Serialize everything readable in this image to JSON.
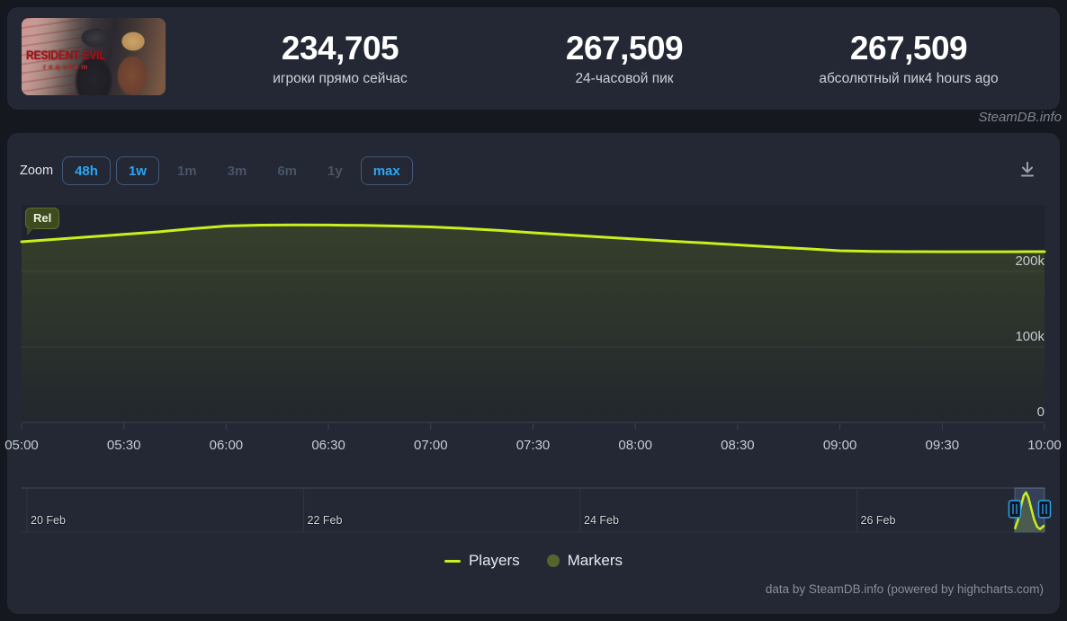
{
  "header": {
    "game_title": "RESIDENT EVIL",
    "game_subtitle": "requiem",
    "stats": [
      {
        "value": "234,705",
        "label": "игроки прямо сейчас",
        "suffix": ""
      },
      {
        "value": "267,509",
        "label": "24-часовой пик",
        "suffix": ""
      },
      {
        "value": "267,509",
        "label": "абсолютный пик",
        "suffix": "4 hours ago"
      }
    ]
  },
  "watermark": "SteamDB.info",
  "toolbar": {
    "zoom_label": "Zoom",
    "buttons": [
      {
        "label": "48h",
        "active": true
      },
      {
        "label": "1w",
        "active": true
      },
      {
        "label": "1m",
        "active": false
      },
      {
        "label": "3m",
        "active": false
      },
      {
        "label": "6m",
        "active": false
      },
      {
        "label": "1y",
        "active": false
      },
      {
        "label": "max",
        "active": true
      }
    ]
  },
  "chart_data": {
    "type": "line",
    "title": "",
    "xlabel": "",
    "ylabel": "",
    "ylim": [
      0,
      288000
    ],
    "grid": true,
    "legend_position": "bottom",
    "release_flag": "Rel",
    "x_ticks": [
      "05:00",
      "05:30",
      "06:00",
      "06:30",
      "07:00",
      "07:30",
      "08:00",
      "08:30",
      "09:00",
      "09:30",
      "10:00"
    ],
    "y_ticks": [
      {
        "value": 0,
        "label": "0"
      },
      {
        "value": 100000,
        "label": "100k"
      },
      {
        "value": 200000,
        "label": "200k"
      }
    ],
    "series": [
      {
        "name": "Players",
        "color": "#c8f01e",
        "points": [
          [
            300,
            239200
          ],
          [
            310,
            242500
          ],
          [
            320,
            245800
          ],
          [
            330,
            249000
          ],
          [
            340,
            252300
          ],
          [
            350,
            256500
          ],
          [
            360,
            260000
          ],
          [
            370,
            261200
          ],
          [
            380,
            261600
          ],
          [
            390,
            261300
          ],
          [
            400,
            260900
          ],
          [
            410,
            260000
          ],
          [
            420,
            258800
          ],
          [
            430,
            256800
          ],
          [
            440,
            254200
          ],
          [
            450,
            251100
          ],
          [
            460,
            248300
          ],
          [
            470,
            245500
          ],
          [
            480,
            242800
          ],
          [
            490,
            240200
          ],
          [
            500,
            237600
          ],
          [
            510,
            235000
          ],
          [
            520,
            232400
          ],
          [
            530,
            229900
          ],
          [
            540,
            227300
          ],
          [
            550,
            226400
          ],
          [
            560,
            226100
          ],
          [
            570,
            226000
          ],
          [
            580,
            226000
          ],
          [
            590,
            226000
          ],
          [
            600,
            226100
          ]
        ]
      }
    ],
    "markers_color": "#55662c",
    "navigator": {
      "day_labels": [
        "20 Feb",
        "22 Feb",
        "24 Feb",
        "26 Feb"
      ],
      "selection_curve": [
        [
          0,
          0.03
        ],
        [
          0.1,
          0.26
        ],
        [
          0.2,
          0.62
        ],
        [
          0.3,
          0.92
        ],
        [
          0.38,
          1.0
        ],
        [
          0.46,
          0.86
        ],
        [
          0.55,
          0.58
        ],
        [
          0.65,
          0.28
        ],
        [
          0.75,
          0.09
        ],
        [
          0.85,
          0.03
        ],
        [
          1,
          0.13
        ]
      ]
    }
  },
  "legend": [
    {
      "label": "Players",
      "swatch": "line",
      "color": "#c8f01e"
    },
    {
      "label": "Markers",
      "swatch": "circle",
      "color": "#55662c"
    }
  ],
  "credits": "data by SteamDB.info (powered by highcharts.com)"
}
